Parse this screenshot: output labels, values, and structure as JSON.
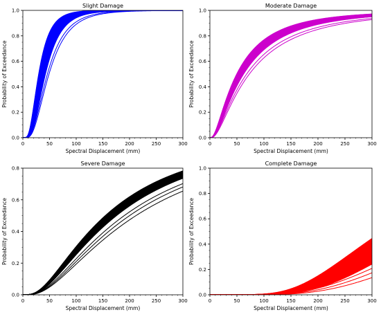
{
  "chart_data": [
    {
      "type": "line",
      "title": "Slight Damage",
      "xlabel": "Spectral Displacement (mm)",
      "ylabel": "Probability of Exceedance",
      "xlim": [
        0,
        300
      ],
      "ylim": [
        0,
        1.0
      ],
      "xticks": [
        "0",
        "50",
        "100",
        "150",
        "200",
        "250",
        "300"
      ],
      "yticks": [
        "0.0",
        "0.2",
        "0.4",
        "0.6",
        "0.8",
        "1.0"
      ],
      "color": "#0000ff",
      "grid": false,
      "series_description": "lognormal fragility curves",
      "band": {
        "median_range": [
          30,
          42
        ],
        "beta": 0.55,
        "count": 30
      },
      "outliers": [
        {
          "median": 46,
          "beta": 0.58
        },
        {
          "median": 49,
          "beta": 0.58
        }
      ]
    },
    {
      "type": "line",
      "title": "Moderate Damage",
      "xlabel": "Spectral Displacement (mm)",
      "ylabel": "Probability of Exceedance",
      "xlim": [
        0,
        300
      ],
      "ylim": [
        0,
        1.0
      ],
      "xticks": [
        "0",
        "50",
        "100",
        "150",
        "200",
        "250",
        "300"
      ],
      "yticks": [
        "0.0",
        "0.2",
        "0.4",
        "0.6",
        "0.8",
        "1.0"
      ],
      "color": "#cc00cc",
      "grid": false,
      "band": {
        "median_range": [
          50,
          62
        ],
        "beta": 0.95,
        "count": 30
      },
      "outliers": [
        {
          "median": 68,
          "beta": 0.97
        },
        {
          "median": 73,
          "beta": 0.97
        }
      ]
    },
    {
      "type": "line",
      "title": "Severe Damage",
      "xlabel": "Spectral Displacement (mm)",
      "ylabel": "Probability of Exceedance",
      "xlim": [
        0,
        300
      ],
      "ylim": [
        0,
        0.8
      ],
      "xticks": [
        "0",
        "50",
        "100",
        "150",
        "200",
        "250",
        "300"
      ],
      "yticks": [
        "0.0",
        "0.2",
        "0.4",
        "0.6",
        "0.8"
      ],
      "color": "#000000",
      "grid": false,
      "band": {
        "median_range": [
          155,
          175
        ],
        "beta": 0.85,
        "count": 30
      },
      "outliers": [
        {
          "median": 190,
          "beta": 0.86
        },
        {
          "median": 200,
          "beta": 0.86
        },
        {
          "median": 212,
          "beta": 0.87
        }
      ]
    },
    {
      "type": "line",
      "title": "Complete Damage",
      "xlabel": "Spectral Displacement (mm)",
      "ylabel": "Probability of Exceedance",
      "xlim": [
        0,
        300
      ],
      "ylim": [
        0,
        1.0
      ],
      "xticks": [
        "0",
        "50",
        "100",
        "150",
        "200",
        "250",
        "300"
      ],
      "yticks": [
        "0.0",
        "0.2",
        "0.4",
        "0.6",
        "0.8",
        "1.0"
      ],
      "color": "#ff0000",
      "grid": false,
      "band": {
        "median_range": [
          320,
          410
        ],
        "beta": 0.45,
        "count": 30
      },
      "outliers": [
        {
          "median": 450,
          "beta": 0.5
        },
        {
          "median": 480,
          "beta": 0.5
        },
        {
          "median": 520,
          "beta": 0.5
        }
      ]
    }
  ]
}
